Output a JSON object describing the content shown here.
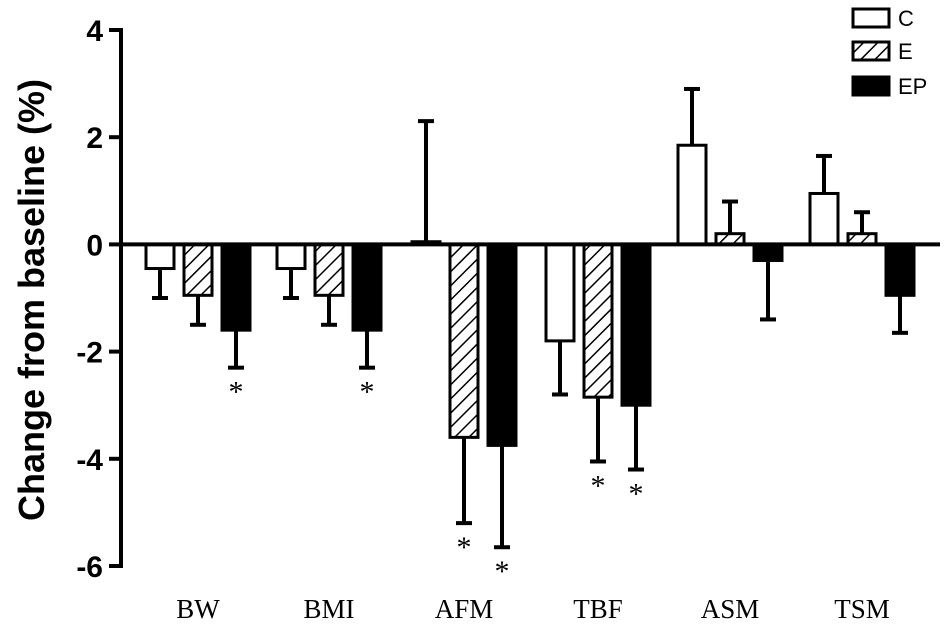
{
  "chart_data": {
    "type": "bar",
    "ylabel": "Change from baseline (%)",
    "ylim": [
      -6,
      4
    ],
    "yticks": [
      "4",
      "2",
      "0",
      "-2",
      "-4",
      "-6"
    ],
    "yticks_values": [
      4,
      2,
      0,
      -2,
      -4,
      -6
    ],
    "categories": [
      "BW",
      "BMI",
      "AFM",
      "TBF",
      "ASM",
      "TSM"
    ],
    "legend_position": "top-right",
    "series": [
      {
        "name": "C",
        "style": "open",
        "values": [
          -0.45,
          -0.45,
          0.05,
          -1.8,
          1.85,
          0.95
        ],
        "errors": [
          0.55,
          0.55,
          2.25,
          1.0,
          1.05,
          0.7
        ]
      },
      {
        "name": "E",
        "style": "hatched",
        "values": [
          -0.95,
          -0.95,
          -3.6,
          -2.85,
          0.2,
          0.2
        ],
        "errors": [
          0.55,
          0.55,
          1.6,
          1.2,
          0.6,
          0.4
        ]
      },
      {
        "name": "EP",
        "style": "solid",
        "values": [
          -1.6,
          -1.6,
          -3.75,
          -3.0,
          -0.3,
          -0.95
        ],
        "errors": [
          0.7,
          0.7,
          1.9,
          1.2,
          1.1,
          0.7
        ]
      }
    ],
    "significance": [
      {
        "category": "BW",
        "series": "EP",
        "label": "*"
      },
      {
        "category": "BMI",
        "series": "EP",
        "label": "*"
      },
      {
        "category": "AFM",
        "series": "E",
        "label": "*"
      },
      {
        "category": "AFM",
        "series": "EP",
        "label": "*"
      },
      {
        "category": "TBF",
        "series": "E",
        "label": "*"
      },
      {
        "category": "TBF",
        "series": "EP",
        "label": "*"
      }
    ],
    "colors": {
      "open": "#ffffff",
      "solid": "#000000",
      "stroke": "#000000"
    }
  }
}
